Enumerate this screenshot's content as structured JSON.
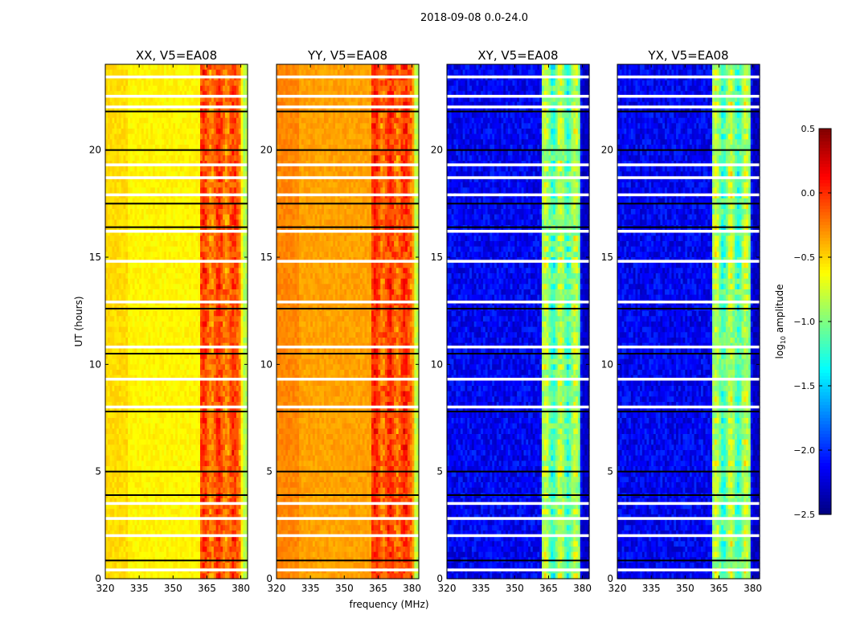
{
  "suptitle": "2018-09-08 0.0-24.0",
  "xlabel": "frequency (MHz)",
  "ylabel": "UT (hours)",
  "colorbar": {
    "label_main": "log",
    "label_sub": "10",
    "label_tail": " amplitude",
    "range": [
      -2.5,
      0.5
    ],
    "ticks": [
      "0.5",
      "0.0",
      "−0.5",
      "−1.0",
      "−1.5",
      "−2.0",
      "−2.5"
    ],
    "tick_values": [
      0.5,
      0.0,
      -0.5,
      -1.0,
      -1.5,
      -2.0,
      -2.5
    ],
    "colormap": "jet"
  },
  "chart_data": [
    {
      "type": "heatmap",
      "title": "XX, V5=EA08",
      "xlim": [
        320,
        383
      ],
      "ylim": [
        0,
        24
      ],
      "xticks": [
        "320",
        "335",
        "350",
        "365",
        "380"
      ],
      "xtick_values": [
        320,
        335,
        350,
        365,
        380
      ],
      "yticks": [
        "0",
        "5",
        "10",
        "15",
        "20"
      ],
      "ytick_values": [
        0,
        5,
        10,
        15,
        20
      ],
      "baseline_log_amp": -0.6,
      "rfi_band_mhz": [
        362,
        380
      ],
      "rfi_log_amp": 0.05,
      "edge_log_amp": -0.85
    },
    {
      "type": "heatmap",
      "title": "YY, V5=EA08",
      "xlim": [
        320,
        383
      ],
      "ylim": [
        0,
        24
      ],
      "xticks": [
        "320",
        "335",
        "350",
        "365",
        "380"
      ],
      "xtick_values": [
        320,
        335,
        350,
        365,
        380
      ],
      "yticks": [
        "0",
        "5",
        "10",
        "15",
        "20"
      ],
      "ytick_values": [
        0,
        5,
        10,
        15,
        20
      ],
      "baseline_log_amp": -0.35,
      "rfi_band_mhz": [
        362,
        380
      ],
      "rfi_log_amp": 0.1,
      "edge_log_amp": -0.8
    },
    {
      "type": "heatmap",
      "title": "XY, V5=EA08",
      "xlim": [
        320,
        383
      ],
      "ylim": [
        0,
        24
      ],
      "xticks": [
        "320",
        "335",
        "350",
        "365",
        "380"
      ],
      "xtick_values": [
        320,
        335,
        350,
        365,
        380
      ],
      "yticks": [
        "0",
        "5",
        "10",
        "15",
        "20"
      ],
      "ytick_values": [
        0,
        5,
        10,
        15,
        20
      ],
      "baseline_log_amp": -2.15,
      "rfi_band_mhz": [
        362,
        379
      ],
      "rfi_log_amp": -0.7,
      "edge_log_amp": -2.3
    },
    {
      "type": "heatmap",
      "title": "YX, V5=EA08",
      "xlim": [
        320,
        383
      ],
      "ylim": [
        0,
        24
      ],
      "xticks": [
        "320",
        "335",
        "350",
        "365",
        "380"
      ],
      "xtick_values": [
        320,
        335,
        350,
        365,
        380
      ],
      "yticks": [
        "0",
        "5",
        "10",
        "15",
        "20"
      ],
      "ytick_values": [
        0,
        5,
        10,
        15,
        20
      ],
      "baseline_log_amp": -2.15,
      "rfi_band_mhz": [
        362,
        379
      ],
      "rfi_log_amp": -0.7,
      "edge_log_amp": -2.3
    }
  ],
  "flagged_ut_hours": [
    0.4,
    2.0,
    2.8,
    3.5,
    8.0,
    9.3,
    10.8,
    12.9,
    14.8,
    16.2,
    17.9,
    18.7,
    19.3,
    22.0,
    22.5,
    23.4
  ],
  "gap_ut_hours": [
    0.85,
    3.9,
    5.0,
    7.8,
    10.5,
    12.6,
    16.4,
    17.5,
    20.0,
    21.8
  ]
}
